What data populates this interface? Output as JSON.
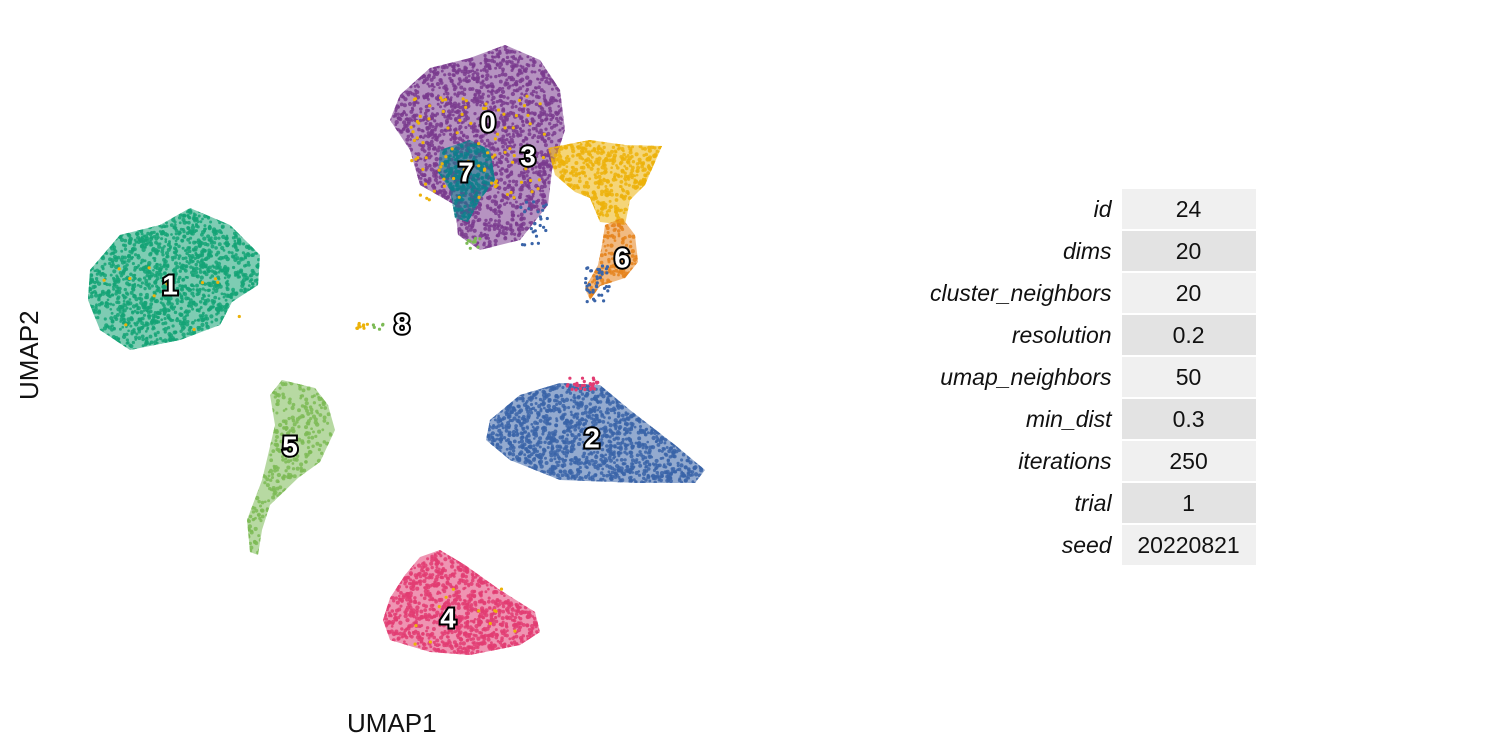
{
  "chart_data": {
    "type": "scatter",
    "xlabel": "UMAP1",
    "ylabel": "UMAP2",
    "grid": false,
    "legend": "none",
    "clusters": [
      {
        "label": "0",
        "color": "#7a3b8e"
      },
      {
        "label": "1",
        "color": "#14a375"
      },
      {
        "label": "2",
        "color": "#3a64a8"
      },
      {
        "label": "3",
        "color": "#ecb20a"
      },
      {
        "label": "4",
        "color": "#e23c72"
      },
      {
        "label": "5",
        "color": "#7cba55"
      },
      {
        "label": "6",
        "color": "#e5821c"
      },
      {
        "label": "7",
        "color": "#0e7f8c"
      },
      {
        "label": "8",
        "color": "#c9a63a"
      }
    ]
  },
  "params": [
    {
      "name": "id",
      "value": "24"
    },
    {
      "name": "dims",
      "value": "20"
    },
    {
      "name": "cluster_neighbors",
      "value": "20"
    },
    {
      "name": "resolution",
      "value": "0.2"
    },
    {
      "name": "umap_neighbors",
      "value": "50"
    },
    {
      "name": "min_dist",
      "value": "0.3"
    },
    {
      "name": "iterations",
      "value": "250"
    },
    {
      "name": "trial",
      "value": "1"
    },
    {
      "name": "seed",
      "value": "20220821"
    }
  ]
}
